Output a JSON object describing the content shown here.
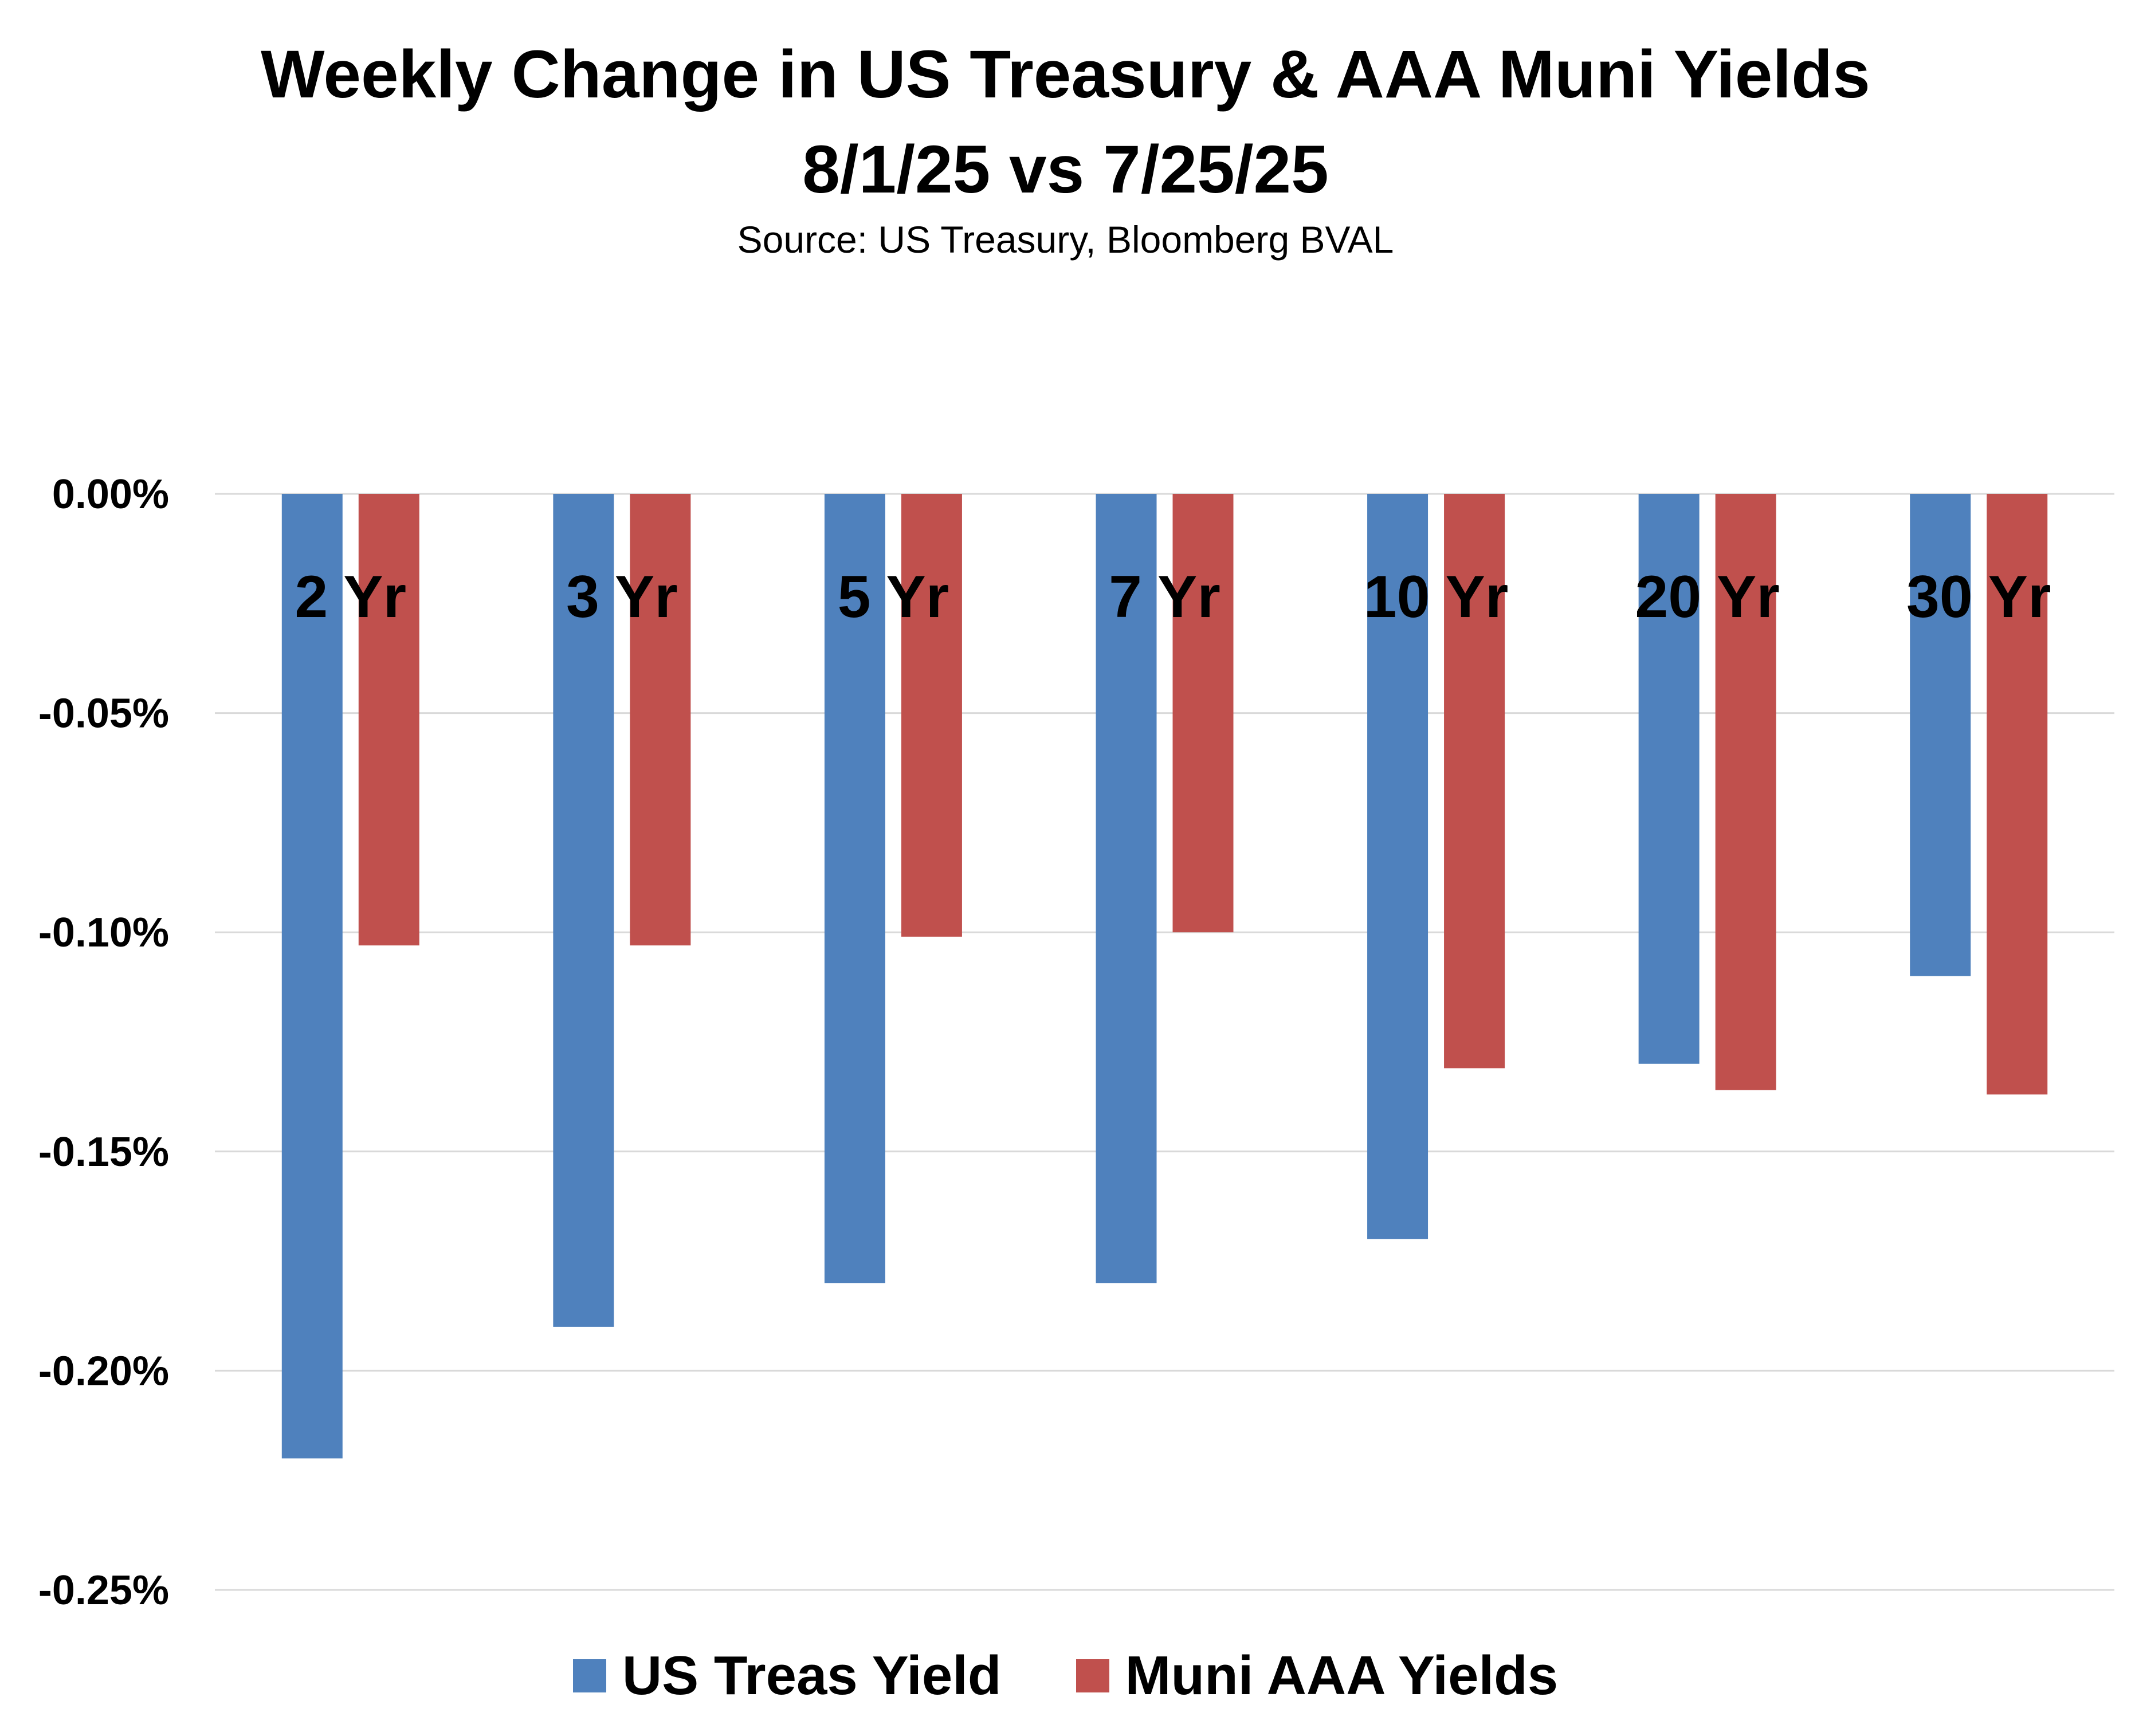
{
  "chart_data": {
    "type": "bar",
    "title": "Weekly Change in US Treasury & AAA Muni Yields",
    "subtitle": "8/1/25 vs 7/25/25",
    "source": "Source: US Treasury, Bloomberg BVAL",
    "categories": [
      "2 Yr",
      "3 Yr",
      "5 Yr",
      "7 Yr",
      "10 Yr",
      "20 Yr",
      "30 Yr"
    ],
    "series": [
      {
        "name": "US Treas Yield",
        "color": "#4F81BD",
        "values": [
          -0.22,
          -0.19,
          -0.18,
          -0.18,
          -0.17,
          -0.13,
          -0.11
        ]
      },
      {
        "name": "Muni AAA Yields",
        "color": "#C0504D",
        "values": [
          -0.103,
          -0.103,
          -0.101,
          -0.1,
          -0.131,
          -0.136,
          -0.137
        ]
      }
    ],
    "ylim": [
      -0.25,
      0
    ],
    "yticks": [
      0,
      -0.05,
      -0.1,
      -0.15,
      -0.2,
      -0.25
    ],
    "ytick_labels": [
      "0.00%",
      "-0.05%",
      "-0.10%",
      "-0.15%",
      "-0.20%",
      "-0.25%"
    ],
    "xlabel": "",
    "ylabel": "",
    "grid": true,
    "legend_position": "bottom"
  }
}
